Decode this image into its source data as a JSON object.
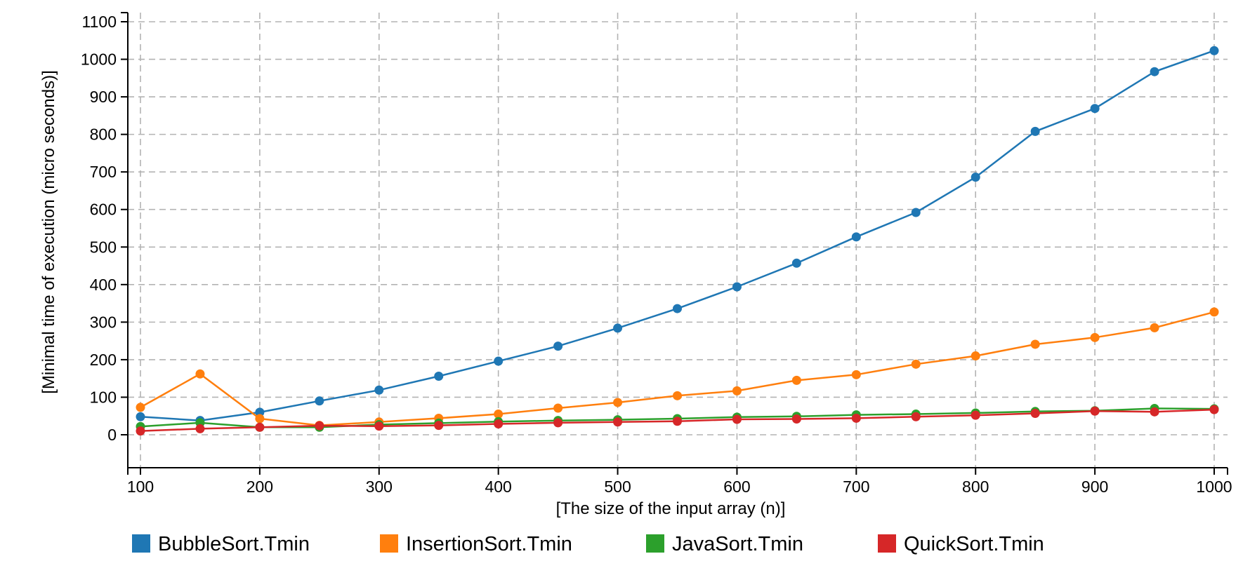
{
  "chart_data": {
    "type": "line",
    "title": "",
    "xlabel": "[The size of the input array (n)]",
    "ylabel": "[Minimal time of execution (micro seconds)]",
    "xlim": [
      90,
      1010
    ],
    "ylim": [
      -90,
      1120
    ],
    "x_ticks": [
      100,
      200,
      300,
      400,
      500,
      600,
      700,
      800,
      900,
      1000
    ],
    "y_ticks": [
      0,
      100,
      200,
      300,
      400,
      500,
      600,
      700,
      800,
      900,
      1000,
      1100
    ],
    "grid": true,
    "legend_position": "bottom",
    "x": [
      100,
      150,
      200,
      250,
      300,
      350,
      400,
      450,
      500,
      550,
      600,
      650,
      700,
      750,
      800,
      850,
      900,
      950,
      1000
    ],
    "series": [
      {
        "name": "BubbleSort.Tmin",
        "color": "#1f77b4",
        "values": [
          48,
          38,
          60,
          90,
          119,
          156,
          196,
          236,
          284,
          336,
          394,
          457,
          527,
          592,
          686,
          808,
          869,
          967,
          1023
        ]
      },
      {
        "name": "InsertionSort.Tmin",
        "color": "#ff7f0e",
        "values": [
          73,
          162,
          43,
          25,
          34,
          44,
          55,
          71,
          86,
          104,
          117,
          145,
          160,
          188,
          210,
          241,
          259,
          285,
          327
        ]
      },
      {
        "name": "JavaSort.Tmin",
        "color": "#2ca02c",
        "values": [
          22,
          32,
          20,
          20,
          27,
          31,
          35,
          38,
          40,
          43,
          47,
          49,
          53,
          55,
          58,
          62,
          64,
          70,
          69
        ]
      },
      {
        "name": "QuickSort.Tmin",
        "color": "#d62728",
        "values": [
          10,
          16,
          20,
          24,
          23,
          25,
          29,
          32,
          34,
          36,
          41,
          42,
          44,
          48,
          52,
          57,
          63,
          61,
          67
        ]
      }
    ]
  }
}
